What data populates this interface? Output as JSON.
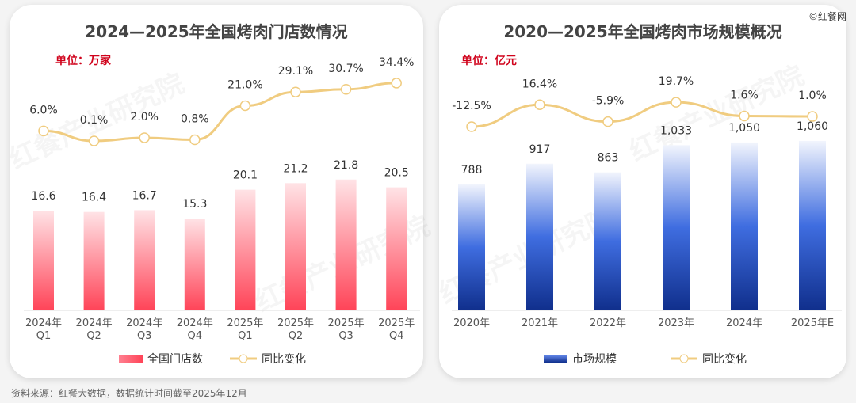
{
  "logo": "©红餐网",
  "watermark": "红餐产业研究院",
  "source": "资料来源：红餐大数据，数据统计时间截至2025年12月",
  "chart_data": [
    {
      "type": "bar+line",
      "title": "2024—2025年全国烤肉门店数情况",
      "unit": "单位：万家",
      "categories": [
        "2024年\nQ1",
        "2024年\nQ2",
        "2024年\nQ3",
        "2024年\nQ4",
        "2025年\nQ1",
        "2025年\nQ2",
        "2025年\nQ3",
        "2025年\nQ4"
      ],
      "series": [
        {
          "name": "全国门店数",
          "type": "bar",
          "color": "#ff4d5e",
          "values": [
            16.6,
            16.4,
            16.7,
            15.3,
            20.1,
            21.2,
            21.8,
            20.5
          ],
          "labels": [
            "16.6",
            "16.4",
            "16.7",
            "15.3",
            "20.1",
            "21.2",
            "21.8",
            "20.5"
          ]
        },
        {
          "name": "同比变化",
          "type": "line",
          "color": "#f0cc80",
          "values": [
            6.0,
            0.1,
            2.0,
            0.8,
            21.0,
            29.1,
            30.7,
            34.4
          ],
          "labels": [
            "6.0%",
            "0.1%",
            "2.0%",
            "0.8%",
            "21.0%",
            "29.1%",
            "30.7%",
            "34.4%"
          ]
        }
      ],
      "legend": "bottom"
    },
    {
      "type": "bar+line",
      "title": "2020—2025年全国烤肉市场规模概况",
      "unit": "单位：亿元",
      "categories": [
        "2020年",
        "2021年",
        "2022年",
        "2023年",
        "2024年",
        "2025年E"
      ],
      "series": [
        {
          "name": "市场规模",
          "type": "bar",
          "color": "#1a3a9c",
          "values": [
            788,
            917,
            863,
            1033,
            1050,
            1060
          ],
          "labels": [
            "788",
            "917",
            "863",
            "1,033",
            "1,050",
            "1,060"
          ]
        },
        {
          "name": "同比变化",
          "type": "line",
          "color": "#f0cc80",
          "values": [
            -12.5,
            16.4,
            -5.9,
            19.7,
            1.6,
            1.0
          ],
          "labels": [
            "-12.5%",
            "16.4%",
            "-5.9%",
            "19.7%",
            "1.6%",
            "1.0%"
          ]
        }
      ],
      "legend": "bottom"
    }
  ]
}
